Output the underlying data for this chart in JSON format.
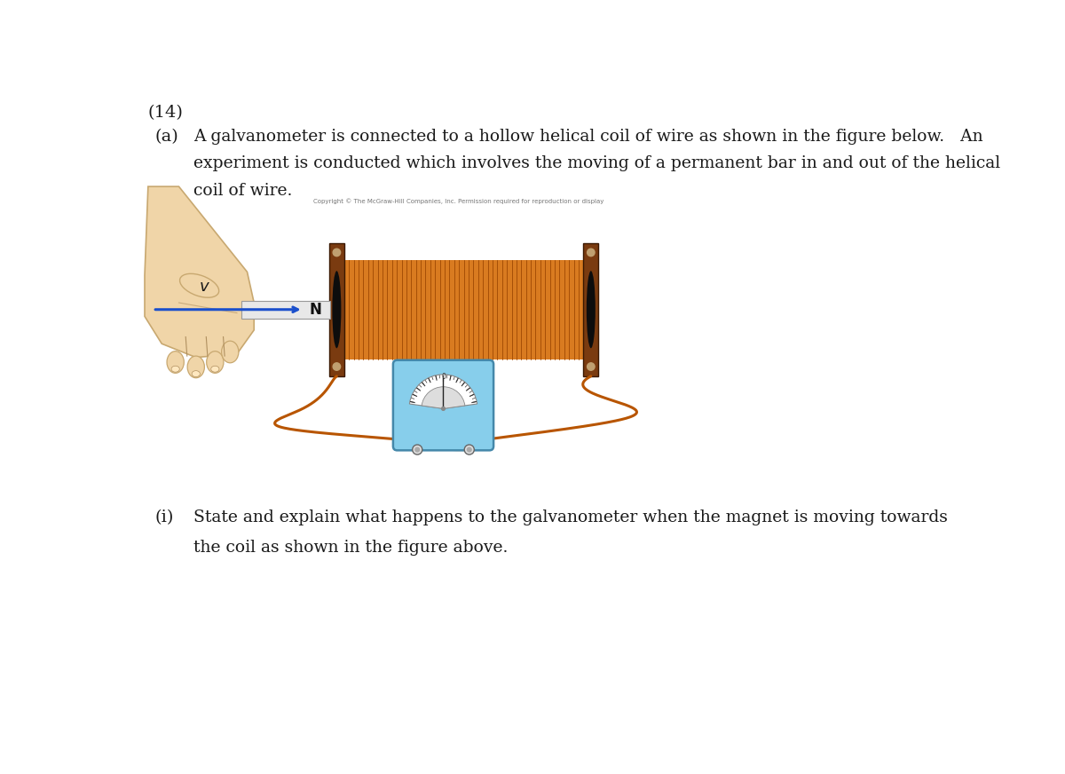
{
  "title_num": "(14)",
  "part_a_label": "(a)",
  "part_a_text_line1": "A galvanometer is connected to a hollow helical coil of wire as shown in the figure below.   An",
  "part_a_text_line2": "experiment is conducted which involves the moving of a permanent bar in and out of the helical",
  "part_a_text_line3": "coil of wire.",
  "copyright_text": "Copyright © The McGraw-Hill Companies, Inc. Permission required for reproduction or display",
  "part_i_label": "(i)",
  "part_i_text_line1": "State and explain what happens to the galvanometer when the magnet is moving towards",
  "part_i_text_line2": "the coil as shown in the figure above.",
  "bg_color": "#ffffff",
  "text_color": "#1a1a1a",
  "coil_color": "#d97b20",
  "coil_dark": "#994400",
  "coil_end_color": "#7a3b10",
  "coil_end_dark": "#3a1800",
  "magnet_color": "#e8e8e8",
  "magnet_border": "#999999",
  "arrow_color": "#1a4fcc",
  "galv_body_color": "#87ceeb",
  "galv_border_color": "#4488aa",
  "hand_skin_color": "#f0d5a8",
  "hand_outline_color": "#c8a870",
  "hand_line_color": "#b09060",
  "wire_color": "#b85500"
}
